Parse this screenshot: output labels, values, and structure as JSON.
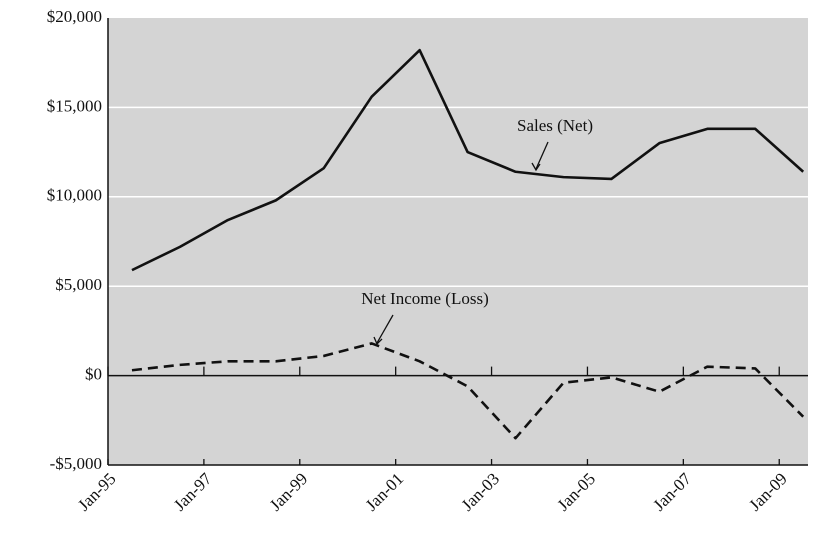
{
  "chart_data": {
    "type": "line",
    "x": [
      1995.5,
      1996.5,
      1997.5,
      1998.5,
      1999.5,
      2000.5,
      2001.5,
      2002.5,
      2003.5,
      2004.5,
      2005.5,
      2006.5,
      2007.5,
      2008.5,
      2009.5
    ],
    "series": [
      {
        "name": "Sales (Net)",
        "color": "#111111",
        "line_style": "solid",
        "values": [
          5900,
          7200,
          8700,
          9800,
          11600,
          15600,
          18200,
          12500,
          11400,
          11100,
          11000,
          13000,
          13800,
          13800,
          11400
        ]
      },
      {
        "name": "Net Income (Loss)",
        "color": "#111111",
        "line_style": "dashed",
        "values": [
          300,
          600,
          800,
          800,
          1100,
          1800,
          800,
          -600,
          -3500,
          -400,
          -100,
          -900,
          500,
          400,
          -2300
        ]
      }
    ],
    "annotations": [
      {
        "text": "Sales (Net)"
      },
      {
        "text": "Net Income (Loss)"
      }
    ],
    "xlim": [
      1995,
      2009.6
    ],
    "xticks": [
      {
        "value": 1995,
        "label": "Jan-95"
      },
      {
        "value": 1997,
        "label": "Jan-97"
      },
      {
        "value": 1999,
        "label": "Jan-99"
      },
      {
        "value": 2001,
        "label": "Jan-01"
      },
      {
        "value": 2003,
        "label": "Jan-03"
      },
      {
        "value": 2005,
        "label": "Jan-05"
      },
      {
        "value": 2007,
        "label": "Jan-07"
      },
      {
        "value": 2009,
        "label": "Jan-09"
      }
    ],
    "ylim": [
      -5000,
      20000
    ],
    "yticks": [
      {
        "value": -5000,
        "label": "-$5,000"
      },
      {
        "value": 0,
        "label": "$0"
      },
      {
        "value": 5000,
        "label": "$5,000"
      },
      {
        "value": 10000,
        "label": "$10,000"
      },
      {
        "value": 15000,
        "label": "$15,000"
      },
      {
        "value": 20000,
        "label": "$20,000"
      }
    ],
    "grid": true
  }
}
